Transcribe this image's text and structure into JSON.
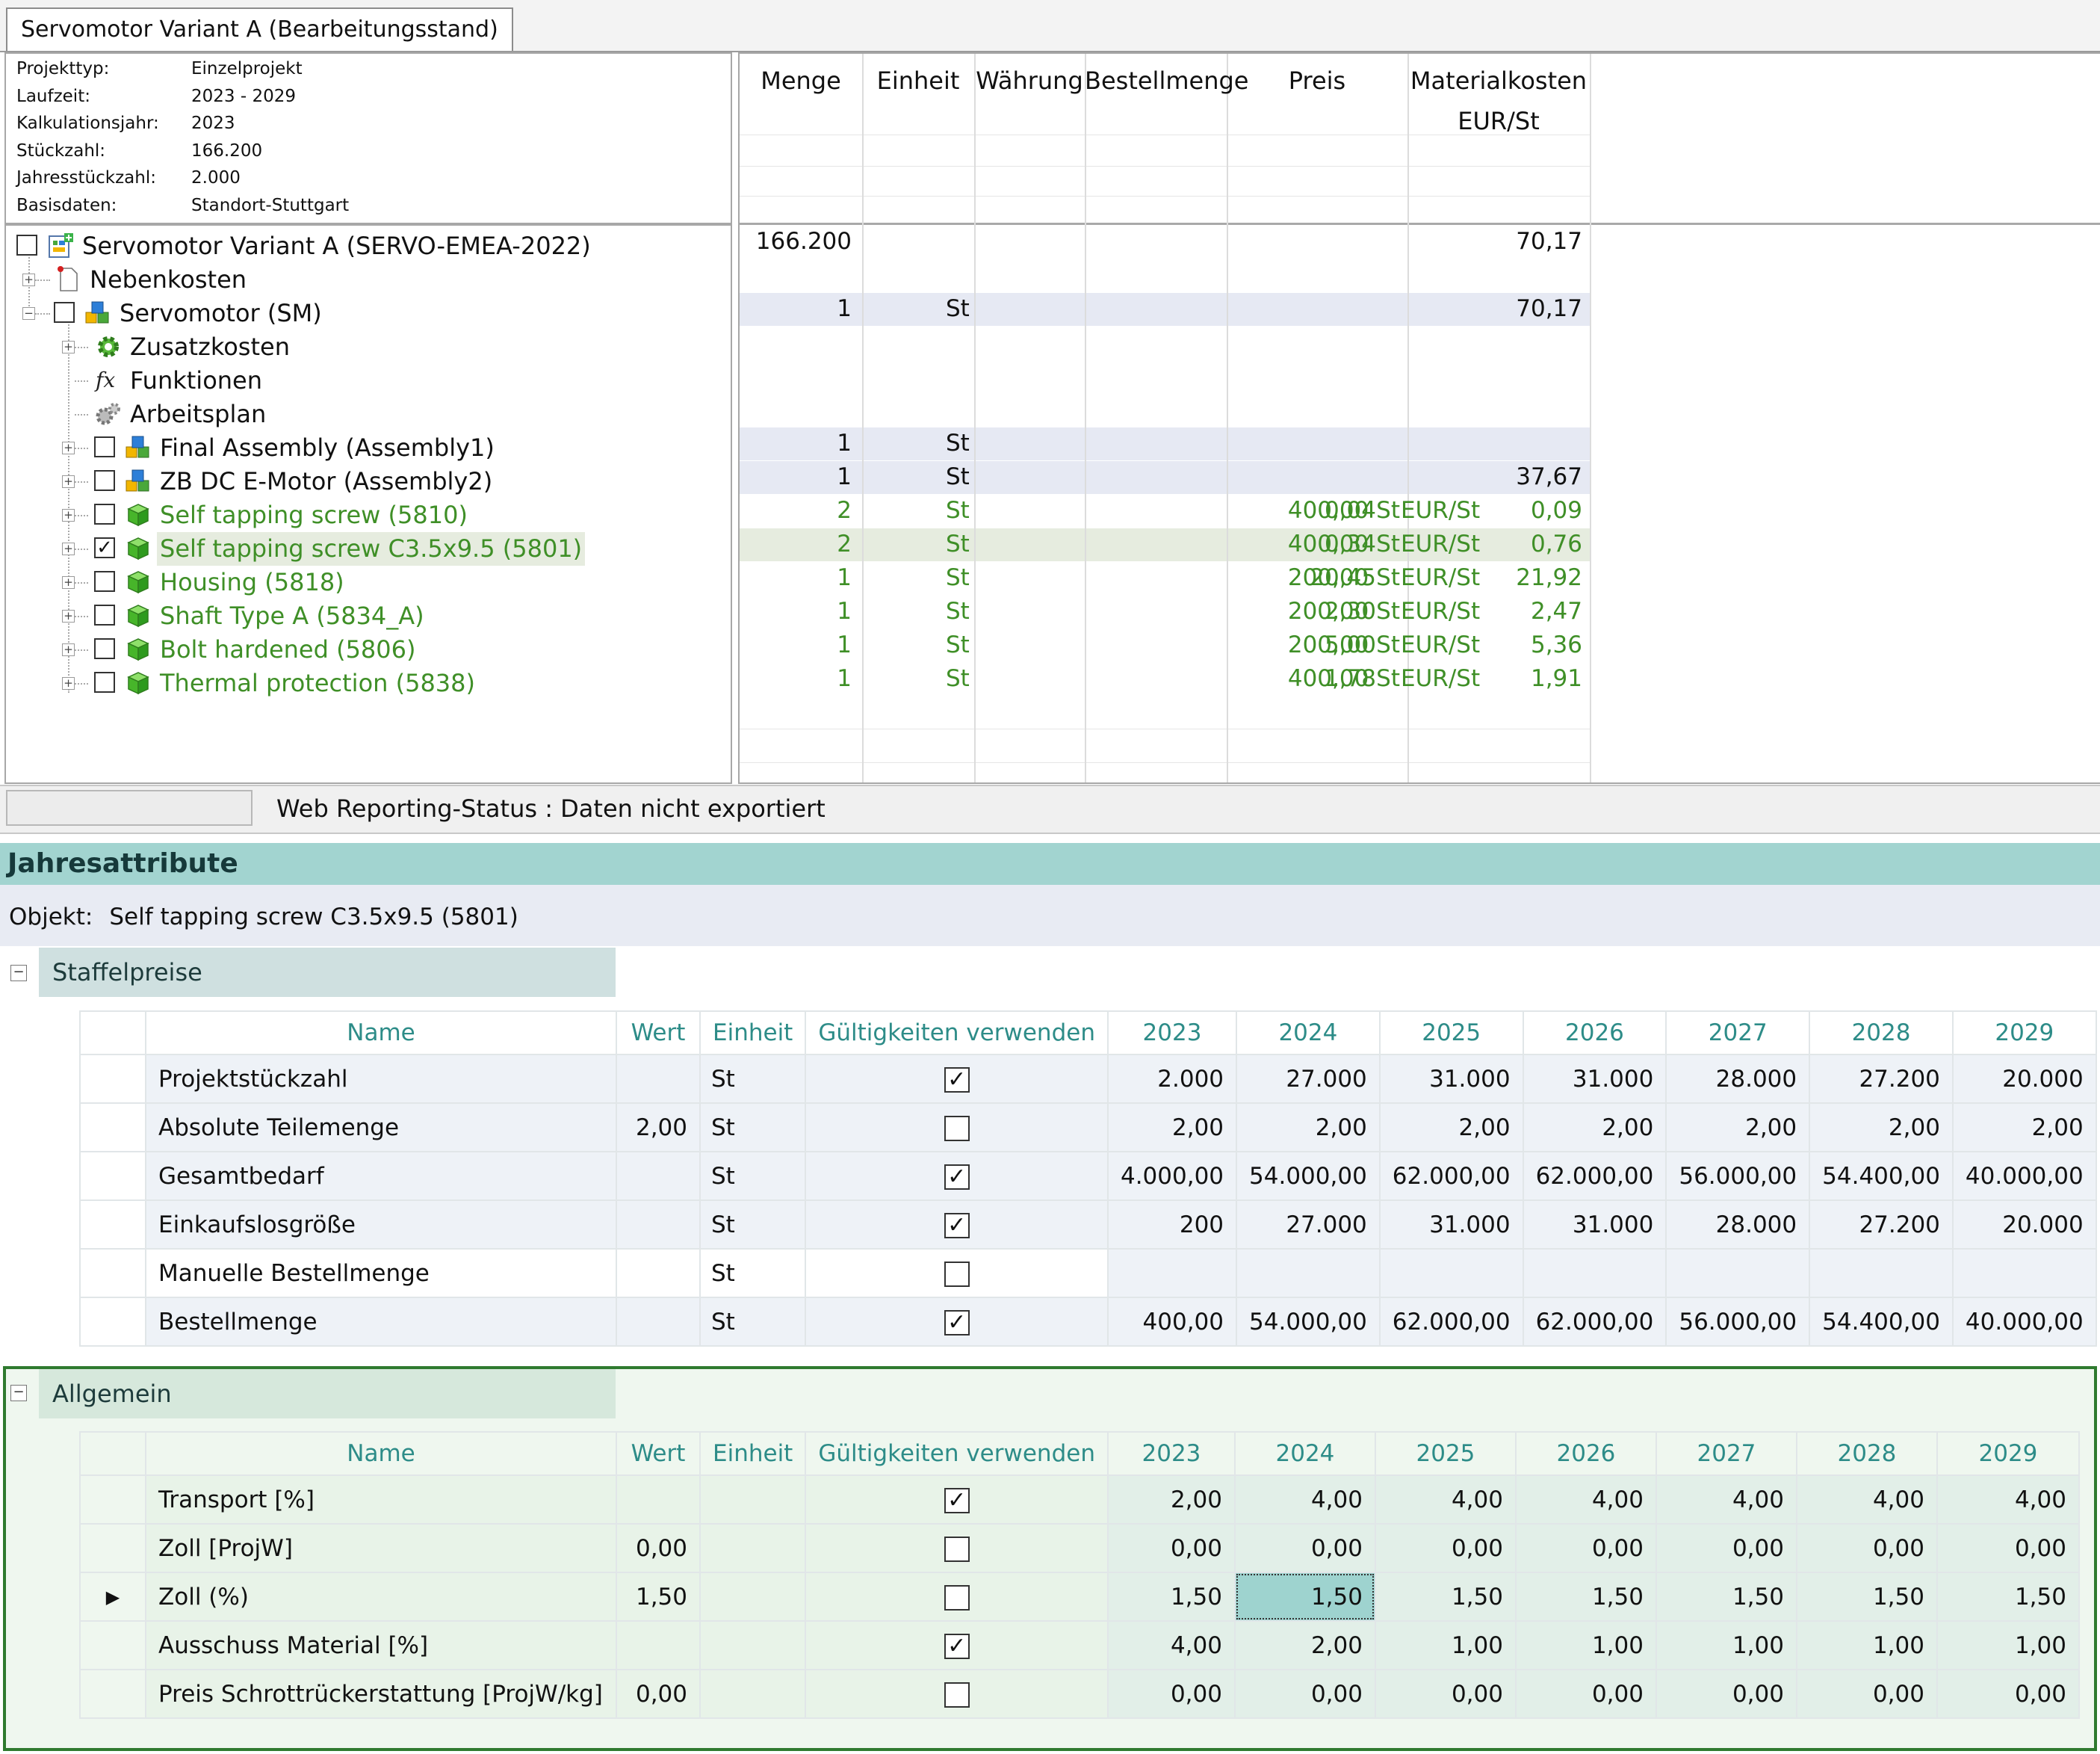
{
  "tab": {
    "title": "Servomotor Variant A (Bearbeitungsstand)"
  },
  "info": [
    {
      "key": "Projekttyp:",
      "value": "Einzelprojekt"
    },
    {
      "key": "Laufzeit:",
      "value": "2023 - 2029"
    },
    {
      "key": "Kalkulationsjahr:",
      "value": "2023"
    },
    {
      "key": "Stückzahl:",
      "value": "166.200"
    },
    {
      "key": "Jahresstückzahl:",
      "value": "2.000"
    },
    {
      "key": "Basisdaten:",
      "value": "Standort-Stuttgart"
    }
  ],
  "tree": [
    {
      "label": "Servomotor Variant A (SERVO-EMEA-2022)",
      "icon": "project-icon",
      "checkbox": "unchecked"
    },
    {
      "label": "Nebenkosten",
      "icon": "document-icon"
    },
    {
      "label": "Servomotor (SM)",
      "icon": "assembly-icon",
      "checkbox": "unchecked"
    },
    {
      "label": "Zusatzkosten",
      "icon": "gear-green-icon"
    },
    {
      "label": "Funktionen",
      "icon": "function-icon"
    },
    {
      "label": "Arbeitsplan",
      "icon": "gears-icon"
    },
    {
      "label": "Final Assembly (Assembly1)",
      "icon": "assembly-icon",
      "checkbox": "unchecked"
    },
    {
      "label": "ZB DC E-Motor (Assembly2)",
      "icon": "assembly-icon",
      "checkbox": "unchecked"
    },
    {
      "label": "Self tapping screw (5810)",
      "icon": "part-cube-icon",
      "checkbox": "unchecked"
    },
    {
      "label": "Self tapping screw C3.5x9.5 (5801)",
      "icon": "part-cube-icon",
      "checkbox": "checked"
    },
    {
      "label": "Housing (5818)",
      "icon": "part-cube-icon",
      "checkbox": "unchecked"
    },
    {
      "label": "Shaft Type A (5834_A)",
      "icon": "part-cube-icon",
      "checkbox": "unchecked"
    },
    {
      "label": "Bolt hardened (5806)",
      "icon": "part-cube-icon",
      "checkbox": "unchecked"
    },
    {
      "label": "Thermal protection (5838)",
      "icon": "part-cube-icon",
      "checkbox": "unchecked"
    }
  ],
  "grid": {
    "headers": {
      "menge": "Menge",
      "einheit": "Einheit",
      "waehrung": "Währung",
      "bestellmenge": "Bestellmenge",
      "preis": "Preis",
      "materialkosten": "Materialkosten",
      "materialkosten_unit": "EUR/St"
    },
    "rows": [
      {
        "menge": "166.200",
        "einheit": "",
        "bestellmenge": "",
        "preis": "",
        "preis_unit": "",
        "mk": "70,17"
      },
      {
        "menge": "",
        "einheit": "",
        "bestellmenge": "",
        "preis": "",
        "preis_unit": "",
        "mk": ""
      },
      {
        "menge": "1",
        "einheit": "St",
        "bestellmenge": "",
        "preis": "",
        "preis_unit": "",
        "mk": "70,17"
      },
      {
        "menge": "",
        "einheit": "",
        "bestellmenge": "",
        "preis": "",
        "preis_unit": "",
        "mk": ""
      },
      {
        "menge": "",
        "einheit": "",
        "bestellmenge": "",
        "preis": "",
        "preis_unit": "",
        "mk": ""
      },
      {
        "menge": "",
        "einheit": "",
        "bestellmenge": "",
        "preis": "",
        "preis_unit": "",
        "mk": ""
      },
      {
        "menge": "1",
        "einheit": "St",
        "bestellmenge": "",
        "preis": "",
        "preis_unit": "",
        "mk": ""
      },
      {
        "menge": "1",
        "einheit": "St",
        "bestellmenge": "",
        "preis": "",
        "preis_unit": "",
        "mk": "37,67"
      },
      {
        "menge": "2",
        "einheit": "St",
        "bestellmenge": "400,00 St",
        "preis": "0,04",
        "preis_unit": "EUR/St",
        "mk": "0,09"
      },
      {
        "menge": "2",
        "einheit": "St",
        "bestellmenge": "400,00 St",
        "preis": "0,34",
        "preis_unit": "EUR/St",
        "mk": "0,76"
      },
      {
        "menge": "1",
        "einheit": "St",
        "bestellmenge": "200,00 St",
        "preis": "20,45",
        "preis_unit": "EUR/St",
        "mk": "21,92"
      },
      {
        "menge": "1",
        "einheit": "St",
        "bestellmenge": "200,00 St",
        "preis": "2,30",
        "preis_unit": "EUR/St",
        "mk": "2,47"
      },
      {
        "menge": "1",
        "einheit": "St",
        "bestellmenge": "200,00 St",
        "preis": "5,00",
        "preis_unit": "EUR/St",
        "mk": "5,36"
      },
      {
        "menge": "1",
        "einheit": "St",
        "bestellmenge": "400,00 St",
        "preis": "1,78",
        "preis_unit": "EUR/St",
        "mk": "1,91"
      }
    ]
  },
  "status": {
    "text": "Web Reporting-Status : Daten nicht exportiert"
  },
  "jahresattribute": {
    "title": "Jahresattribute",
    "objekt_label": "Objekt:",
    "objekt_value": "Self tapping screw C3.5x9.5 (5801)",
    "columns": [
      "Name",
      "Wert",
      "Einheit",
      "Gültigkeiten verwenden",
      "2023",
      "2024",
      "2025",
      "2026",
      "2027",
      "2028",
      "2029"
    ],
    "staffelpreise": {
      "title": "Staffelpreise",
      "rows": [
        {
          "name": "Projektstückzahl",
          "wert": "",
          "einheit": "St",
          "checked": true,
          "years": [
            "2.000",
            "27.000",
            "31.000",
            "31.000",
            "28.000",
            "27.200",
            "20.000"
          ]
        },
        {
          "name": "Absolute Teilemenge",
          "wert": "2,00",
          "einheit": "St",
          "checked": false,
          "years": [
            "2,00",
            "2,00",
            "2,00",
            "2,00",
            "2,00",
            "2,00",
            "2,00"
          ]
        },
        {
          "name": "Gesamtbedarf",
          "wert": "",
          "einheit": "St",
          "checked": true,
          "years": [
            "4.000,00",
            "54.000,00",
            "62.000,00",
            "62.000,00",
            "56.000,00",
            "54.400,00",
            "40.000,00"
          ]
        },
        {
          "name": "Einkaufslosgröße",
          "wert": "",
          "einheit": "St",
          "checked": true,
          "years": [
            "200",
            "27.000",
            "31.000",
            "31.000",
            "28.000",
            "27.200",
            "20.000"
          ]
        },
        {
          "name": "Manuelle Bestellmenge",
          "wert": "",
          "einheit": "St",
          "checked": false,
          "years": [
            "",
            "",
            "",
            "",
            "",
            "",
            ""
          ]
        },
        {
          "name": "Bestellmenge",
          "wert": "",
          "einheit": "St",
          "checked": true,
          "years": [
            "400,00",
            "54.000,00",
            "62.000,00",
            "62.000,00",
            "56.000,00",
            "54.400,00",
            "40.000,00"
          ]
        }
      ]
    },
    "allgemein": {
      "title": "Allgemein",
      "rows": [
        {
          "name": "Transport [%]",
          "wert": "",
          "einheit": "",
          "checked": true,
          "years": [
            "2,00",
            "4,00",
            "4,00",
            "4,00",
            "4,00",
            "4,00",
            "4,00"
          ]
        },
        {
          "name": "Zoll [ProjW]",
          "wert": "0,00",
          "einheit": "",
          "checked": false,
          "years": [
            "0,00",
            "0,00",
            "0,00",
            "0,00",
            "0,00",
            "0,00",
            "0,00"
          ]
        },
        {
          "name": "Zoll (%)",
          "wert": "1,50",
          "einheit": "",
          "checked": false,
          "years": [
            "1,50",
            "1,50",
            "1,50",
            "1,50",
            "1,50",
            "1,50",
            "1,50"
          ]
        },
        {
          "name": "Ausschuss Material [%]",
          "wert": "",
          "einheit": "",
          "checked": true,
          "years": [
            "4,00",
            "2,00",
            "1,00",
            "1,00",
            "1,00",
            "1,00",
            "1,00"
          ]
        },
        {
          "name": "Preis Schrottrückerstattung [ProjW/kg]",
          "wert": "0,00",
          "einheit": "",
          "checked": false,
          "years": [
            "0,00",
            "0,00",
            "0,00",
            "0,00",
            "0,00",
            "0,00",
            "0,00"
          ]
        }
      ]
    }
  }
}
